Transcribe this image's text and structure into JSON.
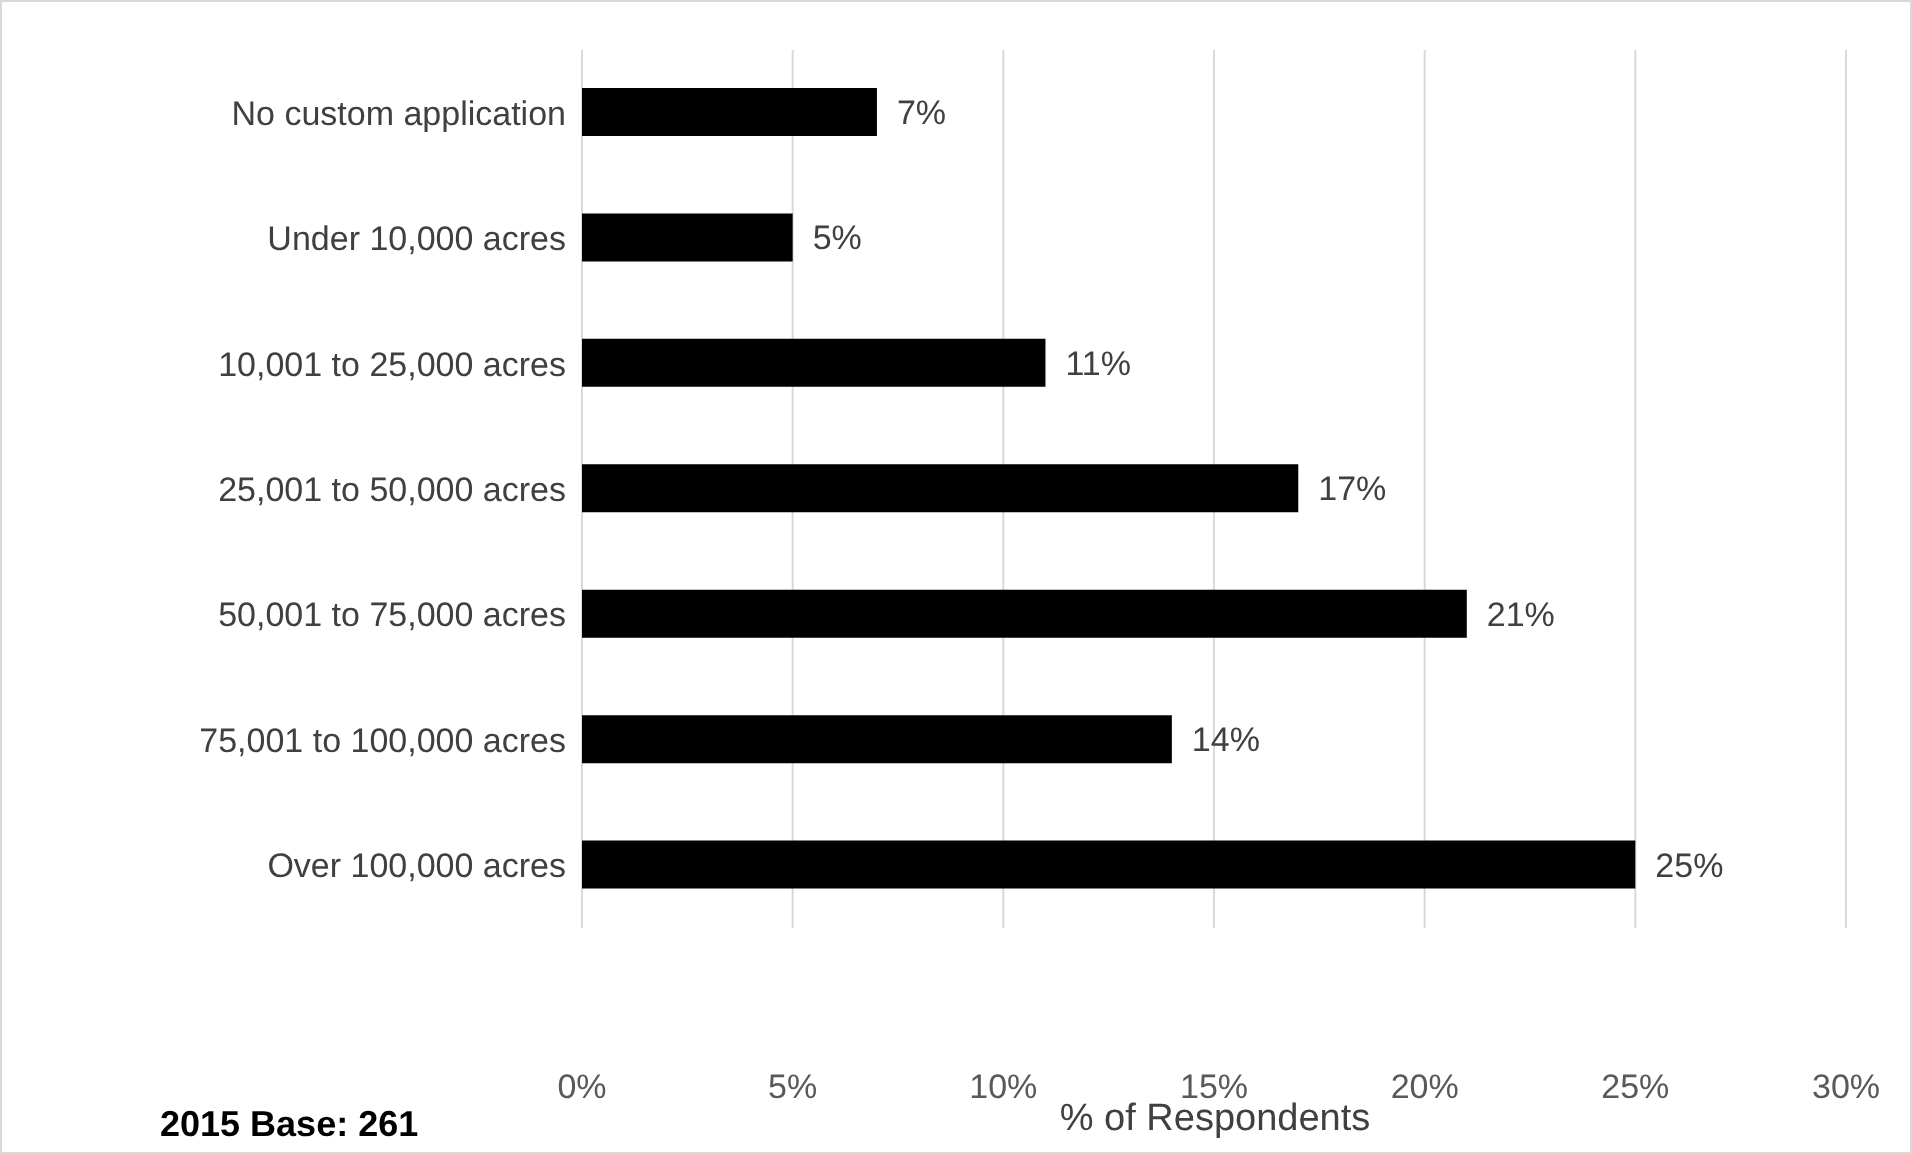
{
  "chart_data": {
    "type": "bar",
    "orientation": "horizontal",
    "xlabel": "% of Respondents",
    "annotations": [
      "2015 Base: 261"
    ],
    "categories": [
      "No custom application",
      "Under 10,000 acres",
      "10,001 to 25,000 acres",
      "25,001 to 50,000 acres",
      "50,001 to 75,000 acres",
      "75,001 to 100,000 acres",
      "Over 100,000 acres"
    ],
    "values": [
      7,
      5,
      11,
      17,
      21,
      14,
      25
    ],
    "value_labels": [
      "7%",
      "5%",
      "11%",
      "17%",
      "21%",
      "14%",
      "25%"
    ],
    "color": "#000000",
    "xlim": [
      0,
      30
    ],
    "xticks": [
      {
        "value": 0,
        "label": "0%"
      },
      {
        "value": 5,
        "label": "5%"
      },
      {
        "value": 10,
        "label": "10%"
      },
      {
        "value": 15,
        "label": "15%"
      },
      {
        "value": 20,
        "label": "20%"
      },
      {
        "value": 25,
        "label": "25%"
      },
      {
        "value": 30,
        "label": "30%"
      }
    ],
    "grid": "x",
    "legend": false
  }
}
